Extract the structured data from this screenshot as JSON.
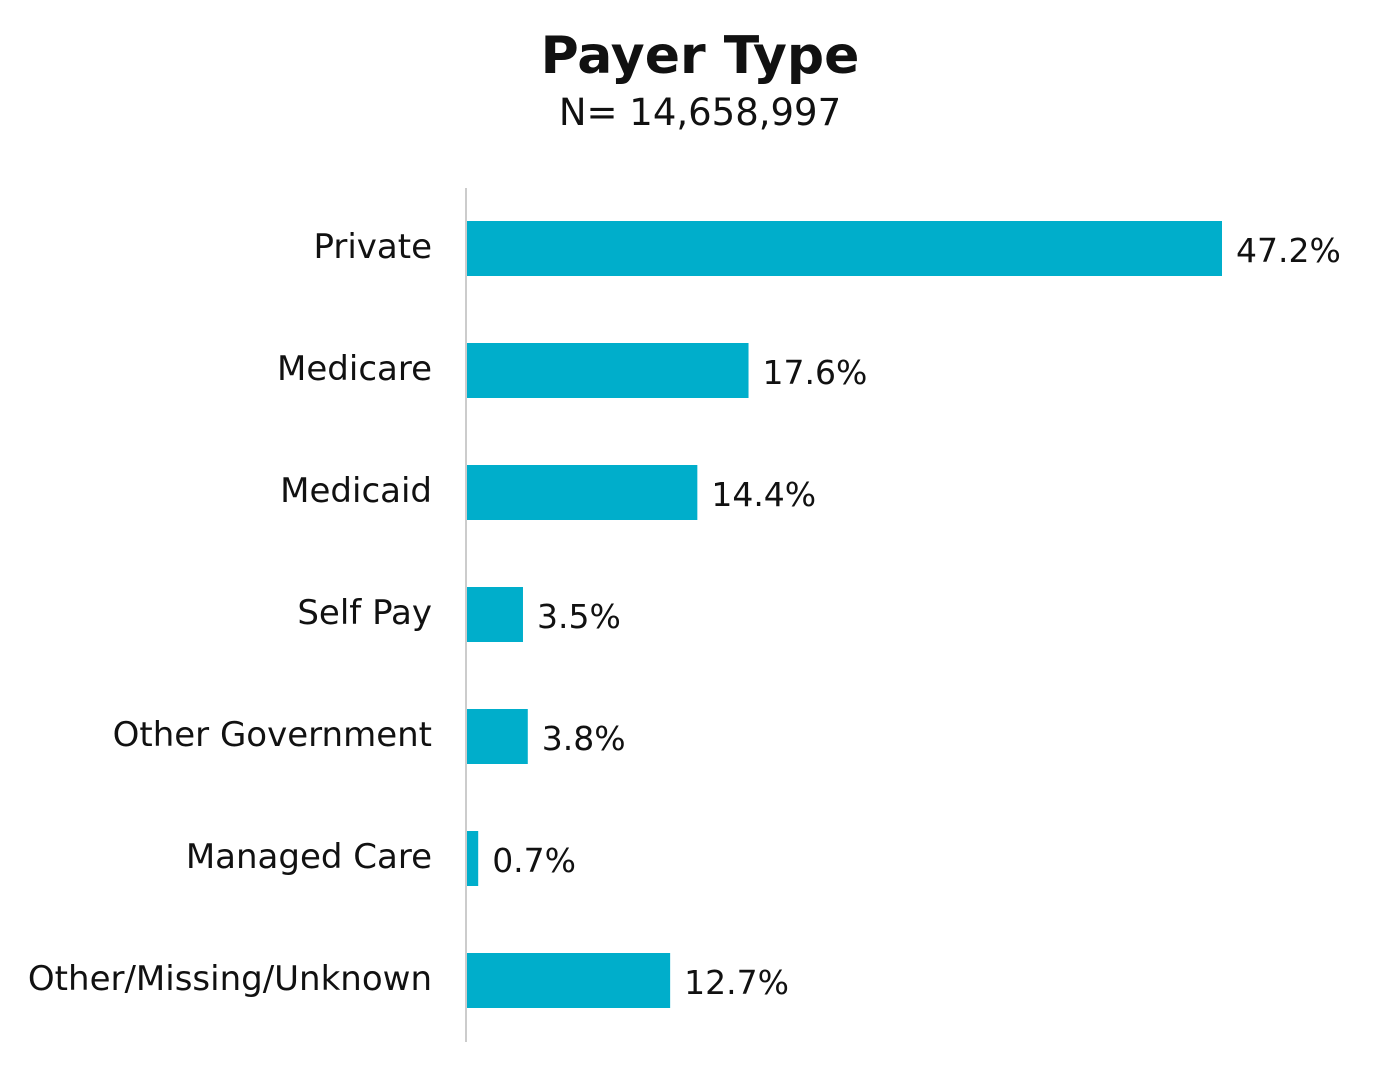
{
  "header": {
    "title": "Payer Type",
    "subtitle": "N= 14,658,997"
  },
  "colors": {
    "bar": "#00AECB",
    "axis": "#cccccc",
    "text": "#111111"
  },
  "chart_data": {
    "type": "bar",
    "orientation": "horizontal",
    "title": "Payer Type",
    "subtitle": "N= 14,658,997",
    "categories": [
      "Private",
      "Medicare",
      "Medicaid",
      "Self Pay",
      "Other Government",
      "Managed Care",
      "Other/Missing/Unknown"
    ],
    "values": [
      47.2,
      17.6,
      14.4,
      3.5,
      3.8,
      0.7,
      12.7
    ],
    "value_labels": [
      "47.2%",
      "17.6%",
      "14.4%",
      "3.5%",
      "3.8%",
      "0.7%",
      "12.7%"
    ],
    "unit": "%",
    "xlim": [
      0,
      50
    ],
    "grid": false,
    "legend": "none"
  }
}
